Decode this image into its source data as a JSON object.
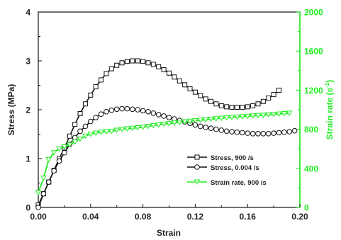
{
  "chart_data": {
    "type": "line",
    "xlabel": "Strain",
    "ylabel_left": "Stress (MPa)",
    "ylabel_right": "Strain rate (s",
    "ylabel_right_sup": "-1",
    "ylabel_right_close": ")",
    "xlim": [
      0,
      0.2
    ],
    "ylim_left": [
      0,
      4
    ],
    "ylim_right": [
      0,
      2000
    ],
    "x_ticks": [
      "0.00",
      "0.04",
      "0.08",
      "0.12",
      "0.16",
      "0.20"
    ],
    "y_left_ticks": [
      "0",
      "1",
      "2",
      "3",
      "4"
    ],
    "y_right_ticks": [
      "0",
      "400",
      "800",
      "1200",
      "1600",
      "2000"
    ],
    "right_axis_color": "#22ee22",
    "legend_position": "lower-right",
    "series": [
      {
        "name": "Stress, 900 /s",
        "axis": "left",
        "color": "#111111",
        "marker": "square",
        "x": [
          0.0,
          0.004,
          0.008,
          0.012,
          0.016,
          0.02,
          0.024,
          0.028,
          0.032,
          0.036,
          0.04,
          0.044,
          0.048,
          0.052,
          0.056,
          0.06,
          0.064,
          0.068,
          0.072,
          0.076,
          0.08,
          0.084,
          0.088,
          0.092,
          0.096,
          0.1,
          0.104,
          0.108,
          0.112,
          0.116,
          0.12,
          0.124,
          0.128,
          0.132,
          0.136,
          0.14,
          0.144,
          0.148,
          0.152,
          0.156,
          0.16,
          0.164,
          0.168,
          0.172,
          0.176,
          0.18,
          0.184
        ],
        "y": [
          0.05,
          0.28,
          0.52,
          0.76,
          1.0,
          1.22,
          1.46,
          1.7,
          1.92,
          2.12,
          2.3,
          2.47,
          2.61,
          2.74,
          2.84,
          2.91,
          2.96,
          2.99,
          3.0,
          3.0,
          2.99,
          2.96,
          2.93,
          2.88,
          2.82,
          2.75,
          2.67,
          2.59,
          2.51,
          2.43,
          2.36,
          2.29,
          2.22,
          2.17,
          2.12,
          2.08,
          2.06,
          2.05,
          2.05,
          2.05,
          2.06,
          2.08,
          2.12,
          2.17,
          2.24,
          2.31,
          2.4
        ]
      },
      {
        "name": "Stress, 0.004 /s",
        "axis": "left",
        "color": "#111111",
        "marker": "circle",
        "x": [
          0.0,
          0.004,
          0.008,
          0.012,
          0.016,
          0.02,
          0.024,
          0.028,
          0.032,
          0.036,
          0.04,
          0.044,
          0.048,
          0.052,
          0.056,
          0.06,
          0.064,
          0.068,
          0.072,
          0.076,
          0.08,
          0.084,
          0.088,
          0.092,
          0.096,
          0.1,
          0.104,
          0.108,
          0.112,
          0.116,
          0.12,
          0.124,
          0.128,
          0.132,
          0.136,
          0.14,
          0.144,
          0.148,
          0.152,
          0.156,
          0.16,
          0.164,
          0.168,
          0.172,
          0.176,
          0.18,
          0.184,
          0.188,
          0.192,
          0.196
        ],
        "y": [
          0.0,
          0.28,
          0.52,
          0.75,
          0.95,
          1.12,
          1.29,
          1.43,
          1.56,
          1.66,
          1.76,
          1.84,
          1.91,
          1.96,
          1.99,
          2.01,
          2.02,
          2.02,
          2.01,
          2.0,
          1.98,
          1.96,
          1.93,
          1.9,
          1.87,
          1.84,
          1.81,
          1.78,
          1.75,
          1.72,
          1.69,
          1.66,
          1.64,
          1.62,
          1.6,
          1.58,
          1.56,
          1.55,
          1.54,
          1.53,
          1.52,
          1.51,
          1.51,
          1.51,
          1.51,
          1.52,
          1.53,
          1.54,
          1.55,
          1.57
        ]
      },
      {
        "name": "Strain rate, 900 /s",
        "axis": "right",
        "color": "#22ee22",
        "marker": "triangle-down",
        "x": [
          0.0,
          0.004,
          0.008,
          0.012,
          0.016,
          0.02,
          0.024,
          0.028,
          0.032,
          0.036,
          0.04,
          0.044,
          0.048,
          0.052,
          0.056,
          0.06,
          0.064,
          0.068,
          0.072,
          0.076,
          0.08,
          0.084,
          0.088,
          0.092,
          0.096,
          0.1,
          0.104,
          0.108,
          0.112,
          0.116,
          0.12,
          0.124,
          0.128,
          0.132,
          0.136,
          0.14,
          0.144,
          0.148,
          0.152,
          0.156,
          0.16,
          0.164,
          0.168,
          0.172,
          0.176,
          0.18,
          0.184,
          0.188,
          0.192
        ],
        "y": [
          150,
          300,
          490,
          560,
          600,
          620,
          640,
          670,
          700,
          730,
          750,
          760,
          770,
          775,
          780,
          790,
          800,
          805,
          810,
          815,
          822,
          830,
          838,
          845,
          852,
          858,
          864,
          870,
          876,
          882,
          888,
          893,
          898,
          903,
          908,
          913,
          917,
          921,
          925,
          929,
          933,
          937,
          940,
          944,
          948,
          952,
          956,
          960,
          965
        ]
      }
    ],
    "legend": [
      {
        "label": "Stress, 900 /s"
      },
      {
        "label": "Stress, 0.004 /s"
      },
      {
        "label": "Strain rate, 900 /s"
      }
    ]
  }
}
